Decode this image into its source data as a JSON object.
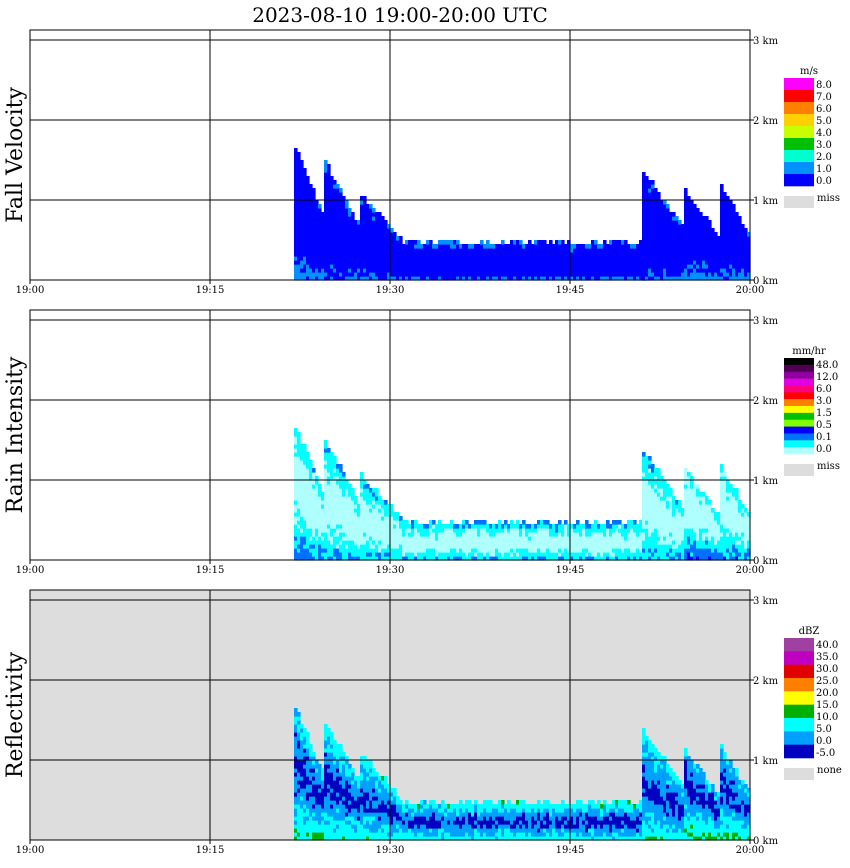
{
  "title": "2023-08-10   19:00-20:00 UTC",
  "chart_data": [
    {
      "type": "heatmap",
      "ylabel": "Fall Velocity",
      "x_ticks": [
        "19:00",
        "19:15",
        "19:30",
        "19:45",
        "20:00"
      ],
      "y_ticks": [
        "0 km",
        "1 km",
        "2 km",
        "3 km"
      ],
      "xlim": [
        "19:00",
        "20:00"
      ],
      "ylim_km": [
        0,
        3.0
      ],
      "grid": true,
      "legend_position": "right",
      "legend": {
        "unit": "m/s",
        "labels": [
          "8.0",
          "7.0",
          "6.0",
          "5.0",
          "4.0",
          "3.0",
          "2.0",
          "1.0",
          "0.0"
        ],
        "colors": [
          "#ff00ff",
          "#ff0000",
          "#ff8000",
          "#ffd000",
          "#c8ff00",
          "#00c000",
          "#00ffd0",
          "#0090ff",
          "#0000ff"
        ],
        "miss_label": "miss",
        "miss_color": "#dddddd"
      }
    },
    {
      "type": "heatmap",
      "ylabel": "Rain Intensity",
      "x_ticks": [
        "19:00",
        "19:15",
        "19:30",
        "19:45",
        "20:00"
      ],
      "y_ticks": [
        "0 km",
        "1 km",
        "2 km",
        "3 km"
      ],
      "xlim": [
        "19:00",
        "20:00"
      ],
      "ylim_km": [
        0,
        3.0
      ],
      "grid": true,
      "legend_position": "right",
      "legend": {
        "unit": "mm/hr",
        "labels": [
          "48.0",
          "12.0",
          "6.0",
          "3.0",
          "1.5",
          "0.5",
          "0.1",
          "0.0"
        ],
        "colors": [
          "#000000",
          "#500050",
          "#9000a0",
          "#e000e0",
          "#ff0080",
          "#ff0000",
          "#ff8000",
          "#ffff00",
          "#00c000",
          "#80ff00",
          "#0000ff",
          "#0070ff",
          "#00ffff",
          "#b0ffff"
        ],
        "miss_label": "miss",
        "miss_color": "#dddddd"
      }
    },
    {
      "type": "heatmap",
      "ylabel": "Reflectivity",
      "x_ticks": [
        "19:00",
        "19:15",
        "19:30",
        "19:45",
        "20:00"
      ],
      "y_ticks": [
        "0 km",
        "1 km",
        "2 km",
        "3 km"
      ],
      "xlim": [
        "19:00",
        "20:00"
      ],
      "ylim_km": [
        0,
        3.0
      ],
      "grid": true,
      "background": "#dddddd",
      "legend_position": "right",
      "legend": {
        "unit": "dBZ",
        "labels": [
          "40.0",
          "35.0",
          "30.0",
          "25.0",
          "20.0",
          "15.0",
          "10.0",
          "5.0",
          "0.0",
          "-5.0"
        ],
        "colors": [
          "#a040a0",
          "#c000c0",
          "#e00000",
          "#ff8000",
          "#ffff00",
          "#00b000",
          "#00ffff",
          "#00a0ff",
          "#0000c0"
        ],
        "miss_label": "none",
        "miss_color": "#dddddd"
      }
    }
  ],
  "echoes": [
    {
      "t0": 22.0,
      "t1": 24.5,
      "base_km": 0.0,
      "top_km": 1.65,
      "core": 0.7
    },
    {
      "t0": 24.5,
      "t1": 27.5,
      "base_km": 0.0,
      "top_km": 1.45,
      "core": 0.8
    },
    {
      "t0": 27.5,
      "t1": 31.0,
      "base_km": 0.0,
      "top_km": 1.05,
      "core": 0.85
    },
    {
      "t0": 31.0,
      "t1": 51.5,
      "base_km": 0.0,
      "top_km": 0.45,
      "core": 0.9
    },
    {
      "t0": 51.0,
      "t1": 54.5,
      "base_km": 0.0,
      "top_km": 1.35,
      "core": 0.8
    },
    {
      "t0": 54.5,
      "t1": 57.5,
      "base_km": 0.0,
      "top_km": 1.1,
      "core": 0.6
    },
    {
      "t0": 57.5,
      "t1": 60.0,
      "base_km": 0.0,
      "top_km": 1.15,
      "core": 0.7
    }
  ]
}
